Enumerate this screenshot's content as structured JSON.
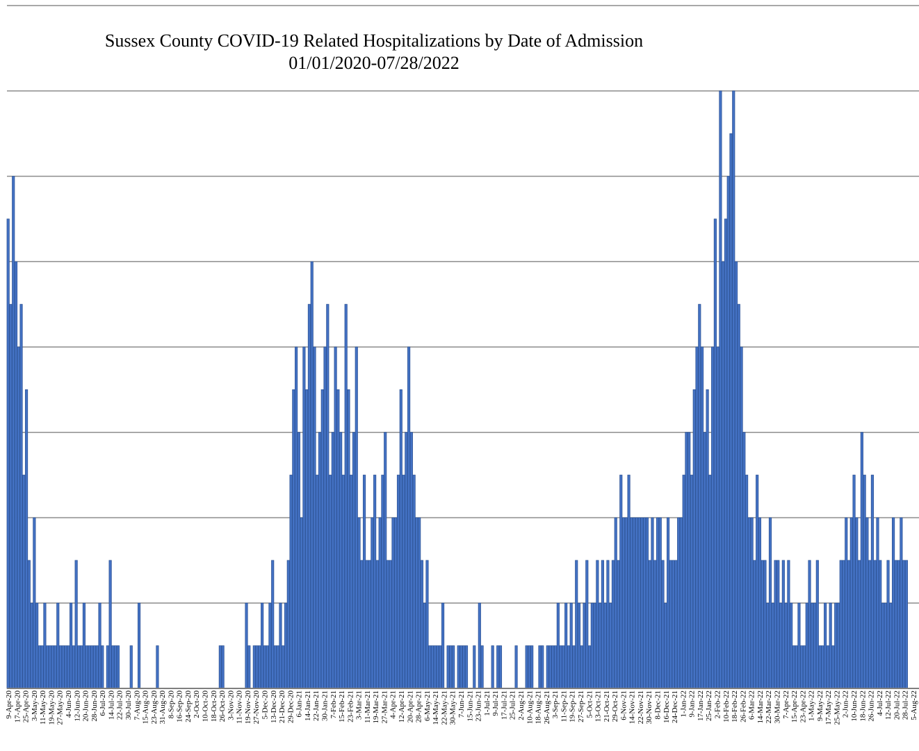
{
  "chart_data": {
    "type": "bar",
    "title": "Sussex County COVID-19 Related Hospitalizations by Date of Admission",
    "subtitle": "01/01/2020-07/28/2022",
    "xlabel": "",
    "ylabel": "",
    "ylim": [
      0,
      16
    ],
    "grid": true,
    "legend": "none",
    "bar_color": "#4472C4",
    "bar_edge_color": "#2F5597",
    "gridline_color": "#8C8C8C",
    "tick_labels": [
      "9-Apr-20",
      "17-Apr-20",
      "25-Apr-20",
      "3-May-20",
      "11-May-20",
      "19-May-20",
      "27-May-20",
      "4-Jun-20",
      "12-Jun-20",
      "20-Jun-20",
      "28-Jun-20",
      "6-Jul-20",
      "14-Jul-20",
      "22-Jul-20",
      "30-Jul-20",
      "7-Aug-20",
      "15-Aug-20",
      "23-Aug-20",
      "31-Aug-20",
      "8-Sep-20",
      "16-Sep-20",
      "24-Sep-20",
      "2-Oct-20",
      "10-Oct-20",
      "18-Oct-20",
      "26-Oct-20",
      "3-Nov-20",
      "11-Nov-20",
      "19-Nov-20",
      "27-Nov-20",
      "5-Dec-20",
      "13-Dec-20",
      "21-Dec-20",
      "29-Dec-20",
      "6-Jan-21",
      "14-Jan-21",
      "22-Jan-21",
      "30-Jan-21",
      "7-Feb-21",
      "15-Feb-21",
      "23-Feb-21",
      "3-Mar-21",
      "11-Mar-21",
      "19-Mar-21",
      "27-Mar-21",
      "4-Apr-21",
      "12-Apr-21",
      "20-Apr-21",
      "28-Apr-21",
      "6-May-21",
      "14-May-21",
      "22-May-21",
      "30-May-21",
      "7-Jun-21",
      "15-Jun-21",
      "23-Jun-21",
      "1-Jul-21",
      "9-Jul-21",
      "17-Jul-21",
      "25-Jul-21",
      "2-Aug-21",
      "10-Aug-21",
      "18-Aug-21",
      "26-Aug-21",
      "3-Sep-21",
      "11-Sep-21",
      "19-Sep-21",
      "27-Sep-21",
      "5-Oct-21",
      "13-Oct-21",
      "21-Oct-21",
      "29-Oct-21",
      "6-Nov-21",
      "14-Nov-21",
      "22-Nov-21",
      "30-Nov-21",
      "8-Dec-21",
      "16-Dec-21",
      "24-Dec-21",
      "1-Jan-22",
      "9-Jan-22",
      "17-Jan-22",
      "25-Jan-22",
      "2-Feb-22",
      "10-Feb-22",
      "18-Feb-22",
      "26-Feb-22",
      "6-Mar-22",
      "14-Mar-22",
      "22-Mar-22",
      "30-Mar-22",
      "7-Apr-22",
      "15-Apr-22",
      "23-Apr-22",
      "1-May-22",
      "9-May-22",
      "17-May-22",
      "25-May-22",
      "2-Jun-22",
      "10-Jun-22",
      "18-Jun-22",
      "26-Jun-22",
      "4-Jul-22",
      "12-Jul-22",
      "20-Jul-22",
      "28-Jul-22",
      "5-Aug-22"
    ],
    "values": [
      11,
      9,
      12,
      10,
      8,
      9,
      5,
      7,
      3,
      2,
      4,
      2,
      1,
      1,
      2,
      1,
      1,
      1,
      1,
      2,
      1,
      1,
      1,
      1,
      2,
      1,
      3,
      1,
      1,
      2,
      1,
      1,
      1,
      1,
      1,
      2,
      1,
      0,
      1,
      3,
      1,
      1,
      1,
      0,
      0,
      0,
      0,
      1,
      0,
      0,
      2,
      0,
      0,
      0,
      0,
      0,
      0,
      1,
      0,
      0,
      0,
      0,
      0,
      0,
      0,
      0,
      0,
      0,
      0,
      0,
      0,
      0,
      0,
      0,
      0,
      0,
      0,
      0,
      0,
      0,
      0,
      1,
      1,
      0,
      0,
      0,
      0,
      0,
      0,
      0,
      0,
      2,
      1,
      0,
      1,
      1,
      1,
      2,
      1,
      1,
      2,
      3,
      1,
      1,
      2,
      1,
      2,
      3,
      5,
      7,
      8,
      6,
      4,
      8,
      7,
      9,
      10,
      8,
      5,
      6,
      7,
      8,
      9,
      5,
      6,
      8,
      7,
      6,
      5,
      9,
      7,
      5,
      6,
      8,
      4,
      3,
      5,
      3,
      3,
      4,
      5,
      3,
      4,
      5,
      6,
      3,
      3,
      4,
      4,
      5,
      7,
      5,
      6,
      8,
      6,
      5,
      4,
      4,
      3,
      2,
      3,
      1,
      1,
      1,
      1,
      1,
      2,
      0,
      1,
      1,
      1,
      0,
      1,
      1,
      1,
      1,
      0,
      0,
      1,
      0,
      2,
      1,
      0,
      0,
      0,
      1,
      0,
      1,
      1,
      0,
      0,
      0,
      0,
      0,
      1,
      0,
      0,
      0,
      1,
      1,
      1,
      0,
      0,
      1,
      1,
      0,
      1,
      1,
      1,
      1,
      2,
      1,
      1,
      2,
      1,
      2,
      1,
      3,
      2,
      1,
      2,
      3,
      1,
      2,
      2,
      3,
      2,
      3,
      2,
      3,
      2,
      3,
      4,
      3,
      5,
      4,
      4,
      5,
      4,
      4,
      4,
      4,
      4,
      4,
      4,
      3,
      4,
      3,
      4,
      4,
      3,
      2,
      4,
      3,
      3,
      3,
      4,
      4,
      5,
      6,
      6,
      5,
      7,
      8,
      9,
      8,
      6,
      7,
      5,
      8,
      11,
      8,
      14,
      10,
      11,
      12,
      13,
      14,
      10,
      9,
      8,
      6,
      5,
      4,
      4,
      3,
      5,
      4,
      3,
      3,
      2,
      4,
      2,
      3,
      3,
      2,
      3,
      2,
      3,
      2,
      1,
      1,
      2,
      1,
      1,
      2,
      3,
      2,
      2,
      3,
      1,
      1,
      2,
      1,
      2,
      1,
      2,
      2,
      3,
      3,
      4,
      3,
      4,
      5,
      4,
      3,
      6,
      5,
      4,
      3,
      5,
      3,
      4,
      3,
      2,
      2,
      3,
      2,
      4,
      3,
      3,
      4,
      3,
      3
    ]
  }
}
